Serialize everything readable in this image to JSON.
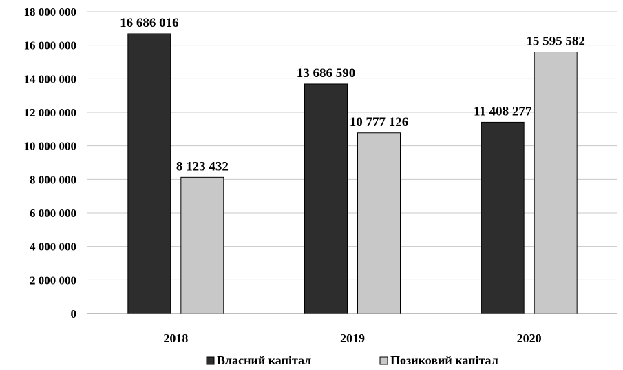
{
  "chart_data": {
    "type": "bar",
    "title": "",
    "xlabel": "",
    "ylabel": "",
    "categories": [
      "2018",
      "2019",
      "2020"
    ],
    "series": [
      {
        "name": "Власний капітал",
        "values": [
          16686016,
          13686590,
          11408277
        ],
        "color": "#2d2d2d"
      },
      {
        "name": "Позиковий капітал",
        "values": [
          8123432,
          10777126,
          15595582
        ],
        "color": "#c8c8c8"
      }
    ],
    "data_labels": [
      [
        "16 686 016",
        "13 686 590",
        "11 408 277"
      ],
      [
        "8 123 432",
        "10 777 126",
        "15 595 582"
      ]
    ],
    "ylim": [
      0,
      18000000
    ],
    "y_ticks": [
      0,
      2000000,
      4000000,
      6000000,
      8000000,
      10000000,
      12000000,
      14000000,
      16000000,
      18000000
    ],
    "y_tick_labels": [
      "0",
      "2 000 000",
      "4 000 000",
      "6 000 000",
      "8 000 000",
      "10 000 000",
      "12 000 000",
      "14 000 000",
      "16 000 000",
      "18 000 000"
    ],
    "grid": true,
    "legend": "bottom"
  }
}
